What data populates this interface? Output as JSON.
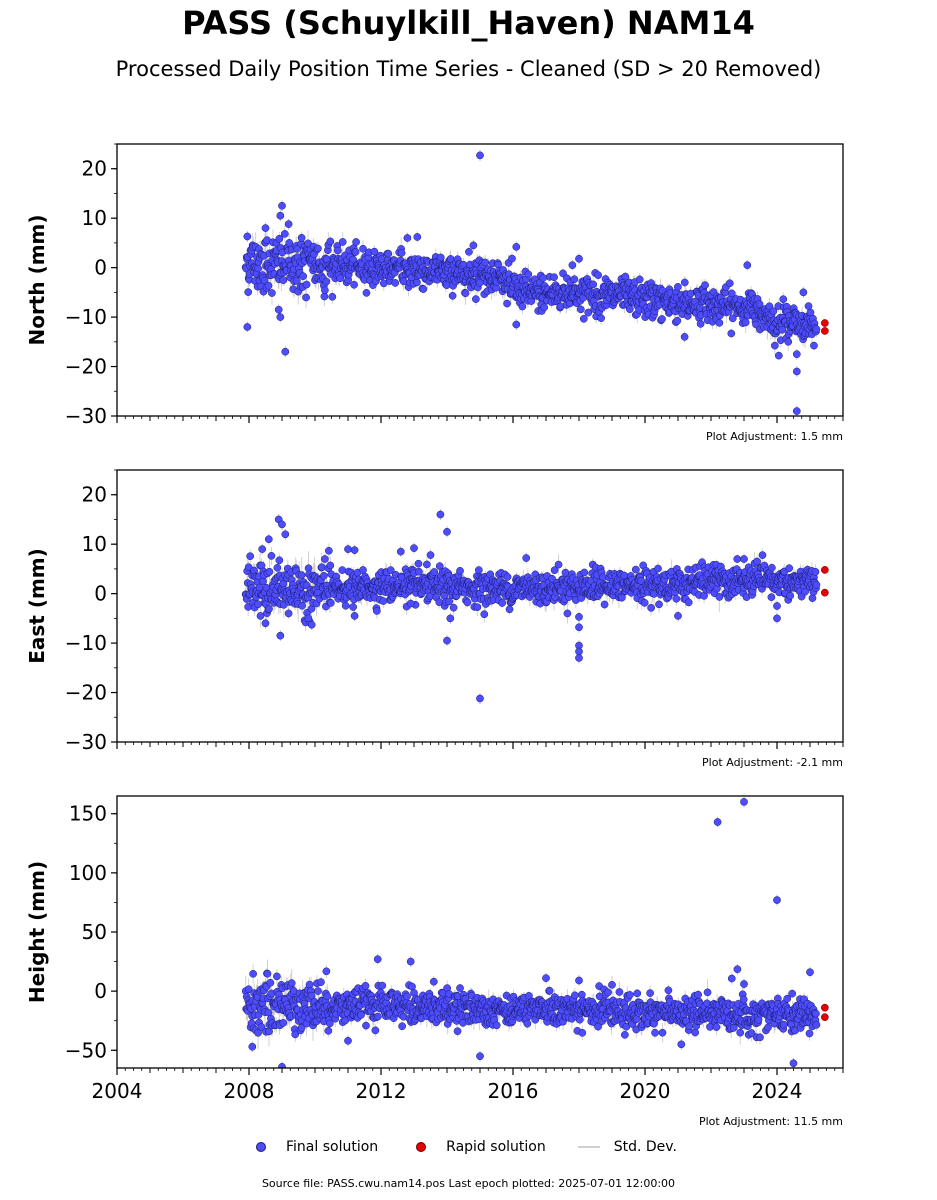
{
  "title": "PASS (Schuylkill_Haven) NAM14",
  "subtitle": "Processed Daily Position Time Series - Cleaned (SD > 20 Removed)",
  "source_note": "Source file: PASS.cwu.nam14.pos  Last epoch plotted: 2025-07-01 12:00:00",
  "legend": {
    "final": "Final solution",
    "rapid": "Rapid solution",
    "std": "Std. Dev."
  },
  "colors": {
    "final": "#4d4dff",
    "final_edge": "#1a1a66",
    "rapid": "#e60000",
    "std": "#bdbdbd"
  },
  "chart_data": [
    {
      "type": "scatter",
      "ylabel": "North (mm)",
      "adjustment_label": "Plot Adjustment: 1.5 mm",
      "xlim": [
        2004.0,
        2026.0
      ],
      "ylim": [
        -30,
        25
      ],
      "yticks": [
        -30,
        -20,
        -10,
        0,
        10,
        20
      ],
      "xticks": [
        2004,
        2008,
        2012,
        2016,
        2020,
        2024
      ],
      "show_xtick_labels": false,
      "series": [
        {
          "name": "Final solution",
          "trend": [
            [
              2007.9,
              1.0
            ],
            [
              2010.0,
              0.5
            ],
            [
              2012.0,
              0.0
            ],
            [
              2015.5,
              -1.5
            ],
            [
              2016.2,
              -5.0
            ],
            [
              2018.0,
              -5.0
            ],
            [
              2020.0,
              -6.5
            ],
            [
              2022.0,
              -7.5
            ],
            [
              2023.5,
              -8.5
            ],
            [
              2024.0,
              -11.0
            ],
            [
              2025.2,
              -11.5
            ]
          ],
          "noise_sd": 1.8,
          "outliers": [
            [
              2007.95,
              -12
            ],
            [
              2007.95,
              6.3
            ],
            [
              2008.5,
              8
            ],
            [
              2009.0,
              12.5
            ],
            [
              2008.95,
              10.5
            ],
            [
              2009.1,
              -17
            ],
            [
              2008.95,
              -10
            ],
            [
              2008.9,
              -8.5
            ],
            [
              2009.2,
              8.8
            ],
            [
              2012.8,
              6
            ],
            [
              2013.1,
              6.2
            ],
            [
              2015.0,
              22.7
            ],
            [
              2014.8,
              4.5
            ],
            [
              2016.1,
              4.2
            ],
            [
              2016.1,
              -11.5
            ],
            [
              2018.0,
              1.8
            ],
            [
              2017.8,
              0.5
            ],
            [
              2021.2,
              -14
            ],
            [
              2023.1,
              0.5
            ],
            [
              2024.6,
              -17.5
            ],
            [
              2024.6,
              -21
            ],
            [
              2024.6,
              -29
            ],
            [
              2024.8,
              -5
            ]
          ]
        },
        {
          "name": "Rapid solution",
          "points": [
            [
              2025.45,
              -11.2
            ],
            [
              2025.45,
              -12.8
            ]
          ]
        }
      ]
    },
    {
      "type": "scatter",
      "ylabel": "East (mm)",
      "adjustment_label": "Plot Adjustment: -2.1 mm",
      "xlim": [
        2004.0,
        2026.0
      ],
      "ylim": [
        -30,
        25
      ],
      "yticks": [
        -30,
        -20,
        -10,
        0,
        10,
        20
      ],
      "xticks": [
        2004,
        2008,
        2012,
        2016,
        2020,
        2024
      ],
      "show_xtick_labels": false,
      "series": [
        {
          "name": "Final solution",
          "trend": [
            [
              2007.9,
              0.5
            ],
            [
              2010.0,
              1.0
            ],
            [
              2013.0,
              1.5
            ],
            [
              2016.0,
              1.0
            ],
            [
              2018.0,
              1.5
            ],
            [
              2020.0,
              1.5
            ],
            [
              2022.0,
              2.5
            ],
            [
              2024.0,
              2.5
            ],
            [
              2025.2,
              2.0
            ]
          ],
          "noise_sd": 1.6,
          "outliers": [
            [
              2008.4,
              9
            ],
            [
              2008.6,
              11
            ],
            [
              2008.9,
              15
            ],
            [
              2009.0,
              14
            ],
            [
              2009.1,
              12
            ],
            [
              2008.95,
              -8.5
            ],
            [
              2008.5,
              -6
            ],
            [
              2009.2,
              -4
            ],
            [
              2009.8,
              -5
            ],
            [
              2009.9,
              -6.3
            ],
            [
              2010.3,
              7
            ],
            [
              2011.0,
              9
            ],
            [
              2011.2,
              8.8
            ],
            [
              2011.2,
              -4.5
            ],
            [
              2012.6,
              8.5
            ],
            [
              2012.9,
              -2
            ],
            [
              2013.0,
              9.2
            ],
            [
              2013.5,
              7.8
            ],
            [
              2013.8,
              16
            ],
            [
              2014.0,
              12.5
            ],
            [
              2014.0,
              -9.5
            ],
            [
              2014.1,
              -5
            ],
            [
              2015.0,
              -21.2
            ],
            [
              2016.4,
              7.2
            ],
            [
              2018.0,
              -4.7
            ],
            [
              2018.0,
              -6.8
            ],
            [
              2018.0,
              -10.5
            ],
            [
              2018.0,
              -11.7
            ],
            [
              2018.0,
              -13
            ],
            [
              2021.0,
              -4.5
            ],
            [
              2023.0,
              7
            ],
            [
              2024.0,
              -5
            ],
            [
              2024.0,
              -2.5
            ]
          ]
        },
        {
          "name": "Rapid solution",
          "points": [
            [
              2025.45,
              4.8
            ],
            [
              2025.45,
              0.2
            ]
          ]
        }
      ]
    },
    {
      "type": "scatter",
      "ylabel": "Height (mm)",
      "adjustment_label": "Plot Adjustment: 11.5 mm",
      "xlim": [
        2004.0,
        2026.0
      ],
      "ylim": [
        -65,
        165
      ],
      "yticks": [
        -50,
        0,
        50,
        100,
        150
      ],
      "xticks": [
        2004,
        2008,
        2012,
        2016,
        2020,
        2024
      ],
      "xtick_labels": [
        "2004",
        "2008",
        "2012",
        "2016",
        "2020",
        "2024"
      ],
      "show_xtick_labels": true,
      "series": [
        {
          "name": "Final solution",
          "trend": [
            [
              2007.9,
              -12.0
            ],
            [
              2010.0,
              -12.0
            ],
            [
              2013.0,
              -13.0
            ],
            [
              2016.0,
              -15.0
            ],
            [
              2018.0,
              -16.0
            ],
            [
              2020.0,
              -18.0
            ],
            [
              2022.0,
              -19.0
            ],
            [
              2024.0,
              -20.0
            ],
            [
              2025.2,
              -20.0
            ]
          ],
          "noise_sd": 7.0,
          "outliers": [
            [
              2008.1,
              -47
            ],
            [
              2009.0,
              -64
            ],
            [
              2011.0,
              -42
            ],
            [
              2012.9,
              25
            ],
            [
              2011.9,
              27
            ],
            [
              2013.6,
              8
            ],
            [
              2015.0,
              -55
            ],
            [
              2017.0,
              11
            ],
            [
              2018.0,
              9
            ],
            [
              2021.1,
              -45
            ],
            [
              2022.2,
              143
            ],
            [
              2022.8,
              18.5
            ],
            [
              2023.0,
              160
            ],
            [
              2023.0,
              6
            ],
            [
              2024.0,
              77
            ],
            [
              2024.5,
              -61
            ],
            [
              2025.0,
              16
            ]
          ]
        },
        {
          "name": "Rapid solution",
          "points": [
            [
              2025.45,
              -14
            ],
            [
              2025.45,
              -22
            ]
          ]
        }
      ]
    }
  ]
}
